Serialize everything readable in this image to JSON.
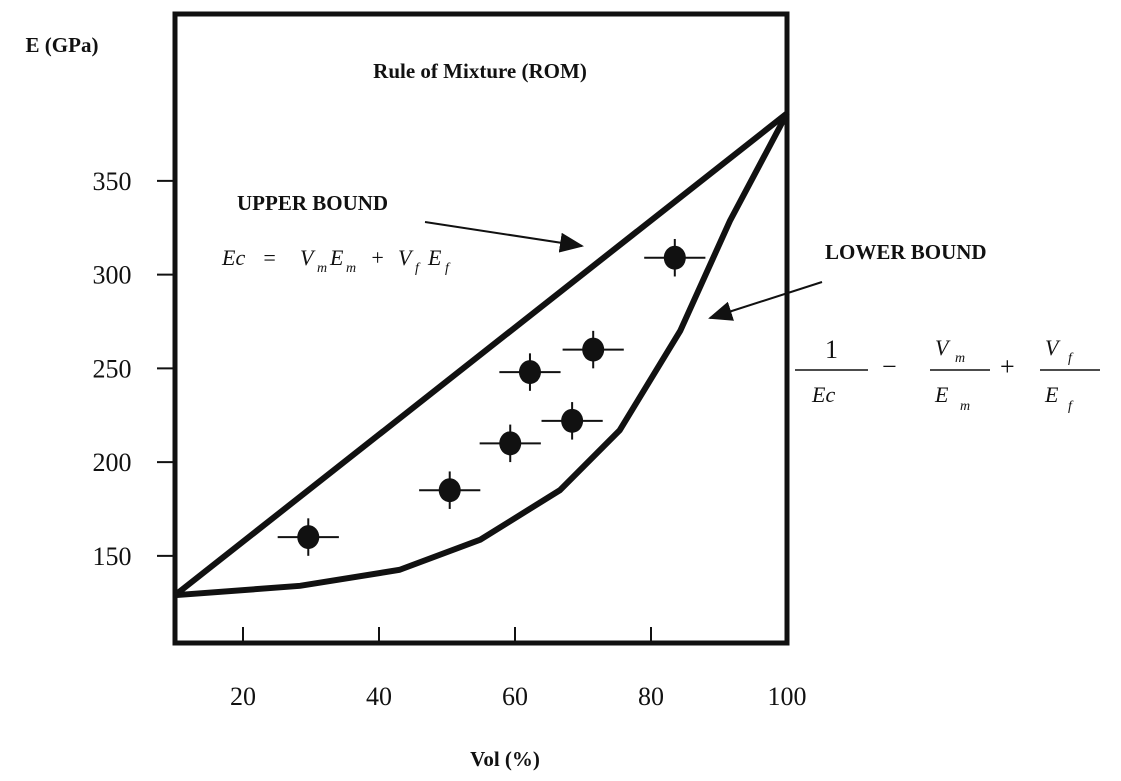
{
  "chart_data": {
    "type": "scatter",
    "title": "Rule of Mixture (ROM)",
    "x_label": "Vol (%)",
    "y_label": "E (GPa)",
    "xlim": [
      10,
      100
    ],
    "ylim": [
      103.5,
      439
    ],
    "xticks": [
      20,
      40,
      60,
      80,
      100
    ],
    "yticks": [
      150,
      200,
      250,
      300,
      350
    ],
    "color": "#111111",
    "x": [
      29.6,
      50.4,
      59.3,
      62.2,
      68.4,
      71.5,
      83.5
    ],
    "values": [
      160,
      185,
      210,
      248,
      222,
      260,
      309
    ],
    "xerr": [
      4.5,
      4.5,
      4.5,
      4.5,
      4.5,
      4.5,
      4.5
    ],
    "yerr": [
      10,
      10,
      10,
      10,
      10,
      10,
      10
    ],
    "bounds": [
      {
        "name": "UPPER BOUND",
        "x": [
          10,
          100
        ],
        "values": [
          129,
          386
        ]
      },
      {
        "name": "LOWER BOUND",
        "x": [
          10,
          28.4,
          43,
          54.9,
          66.6,
          75.4,
          84.3,
          91.6,
          100
        ],
        "values": [
          129,
          134,
          142.5,
          158.6,
          185,
          217,
          270,
          328.6,
          386
        ]
      }
    ],
    "upper_equation": [
      "Ec",
      "=",
      "V",
      "m",
      "E",
      "m",
      "+",
      "V",
      "f",
      "E",
      "f"
    ],
    "lower_equation": [
      "1",
      "Ec",
      "−",
      "V",
      "m",
      "E",
      "m",
      "+",
      "V",
      "f",
      "E",
      "f"
    ]
  }
}
